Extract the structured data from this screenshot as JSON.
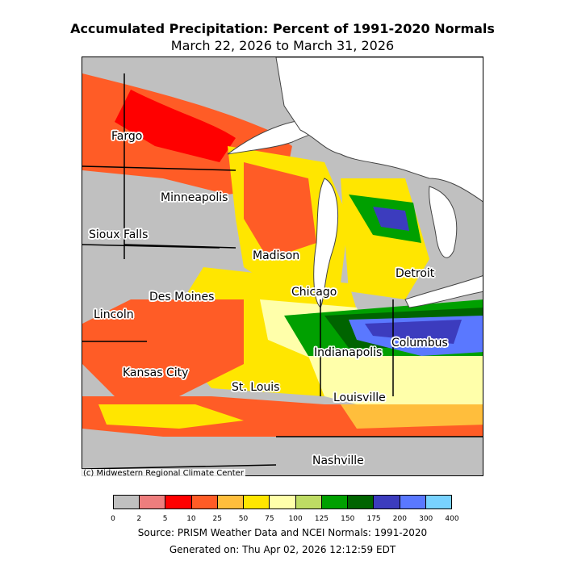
{
  "header": {
    "title": "Accumulated Precipitation: Percent of 1991-2020 Normals",
    "subtitle": "March 22, 2026 to March 31, 2026"
  },
  "map": {
    "cities": [
      {
        "name": "Fargo"
      },
      {
        "name": "Minneapolis"
      },
      {
        "name": "Sioux Falls"
      },
      {
        "name": "Madison"
      },
      {
        "name": "Detroit"
      },
      {
        "name": "Chicago"
      },
      {
        "name": "Des Moines"
      },
      {
        "name": "Lincoln"
      },
      {
        "name": "Columbus"
      },
      {
        "name": "Indianapolis"
      },
      {
        "name": "Kansas City"
      },
      {
        "name": "St. Louis"
      },
      {
        "name": "Louisville"
      },
      {
        "name": "Nashville"
      }
    ],
    "copyright": "(c) Midwestern Regional Climate Center"
  },
  "legend": {
    "ticks": [
      "0",
      "2",
      "5",
      "10",
      "25",
      "50",
      "75",
      "100",
      "125",
      "150",
      "175",
      "200",
      "300",
      "400"
    ],
    "colors": [
      "#c0c0c0",
      "#ee7d7d",
      "#ff0000",
      "#ff5c26",
      "#ffbe3c",
      "#ffe600",
      "#ffffaa",
      "#bedc64",
      "#00a000",
      "#006400",
      "#3c3cbe",
      "#5a78ff",
      "#78d2ff"
    ]
  },
  "footer": {
    "source": "Source: PRISM Weather Data and NCEI Normals: 1991-2020",
    "generated": "Generated on: Thu Apr 02, 2026 12:12:59 EDT"
  }
}
